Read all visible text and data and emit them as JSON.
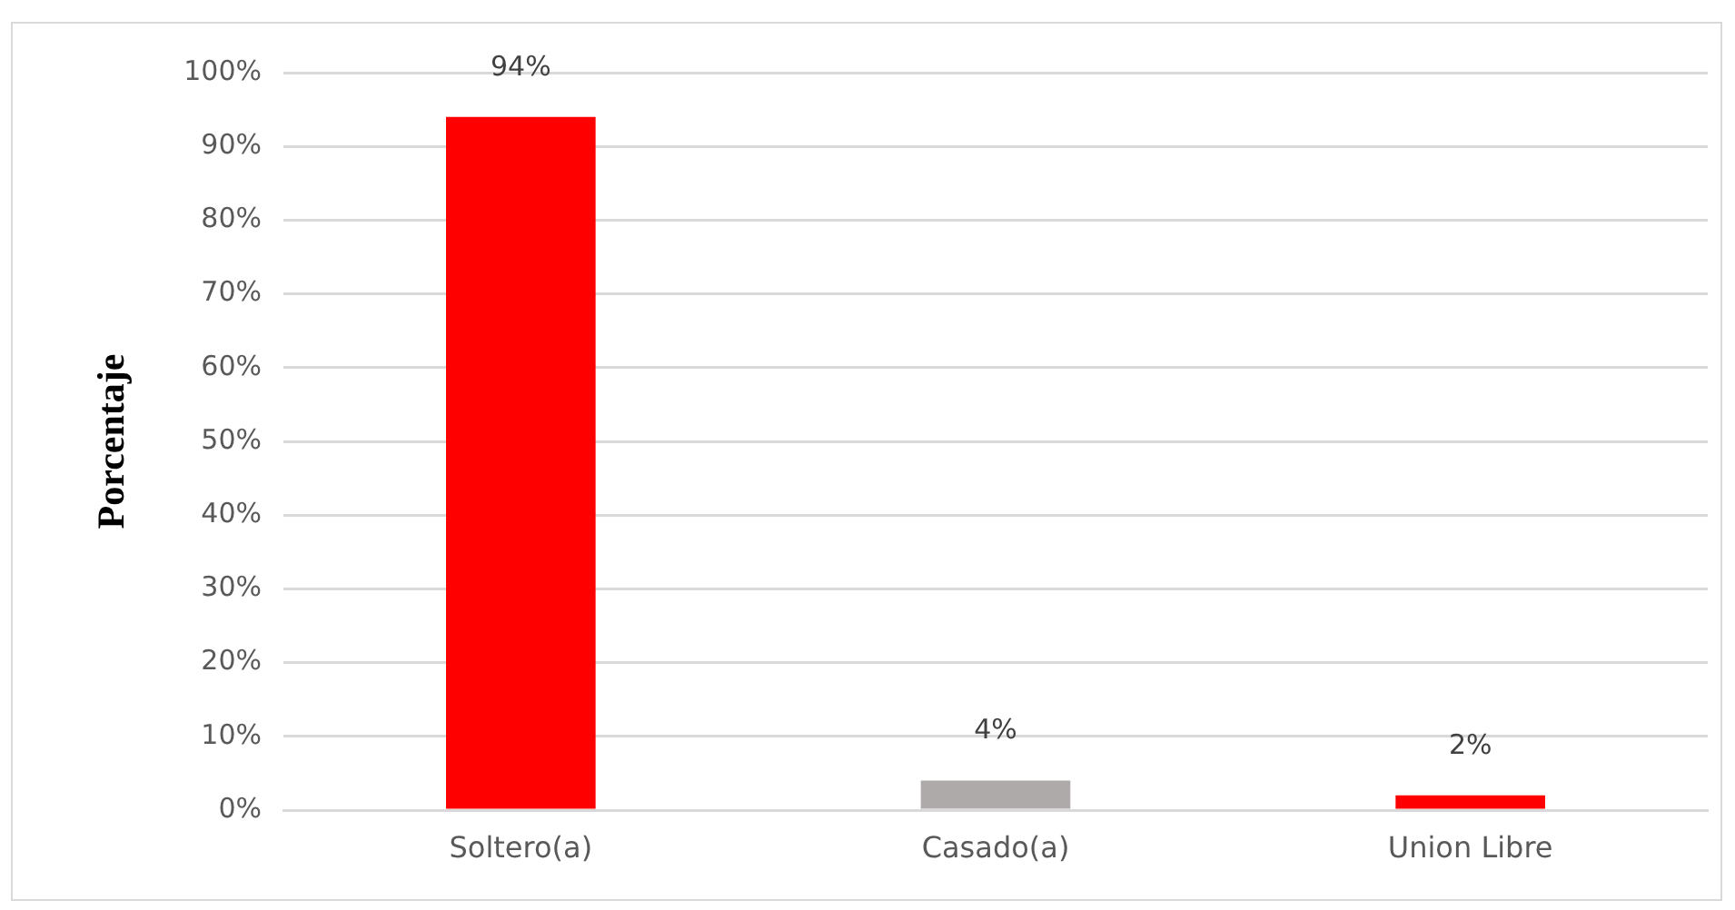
{
  "chart_data": {
    "type": "bar",
    "ylabel": "Porcentaje",
    "categories": [
      "Soltero(a)",
      "Casado(a)",
      "Union Libre"
    ],
    "values": [
      94,
      4,
      2
    ],
    "colors": [
      "#ff0000",
      "#aeaaaa",
      "#ff0000"
    ],
    "value_labels": [
      "94%",
      "4%",
      "2%"
    ],
    "ylim": [
      0,
      100
    ],
    "yticks": [
      {
        "value": 0,
        "label": "0%"
      },
      {
        "value": 10,
        "label": "10%"
      },
      {
        "value": 20,
        "label": "20%"
      },
      {
        "value": 30,
        "label": "30%"
      },
      {
        "value": 40,
        "label": "40%"
      },
      {
        "value": 50,
        "label": "50%"
      },
      {
        "value": 60,
        "label": "60%"
      },
      {
        "value": 70,
        "label": "70%"
      },
      {
        "value": 80,
        "label": "80%"
      },
      {
        "value": 90,
        "label": "90%"
      },
      {
        "value": 100,
        "label": "100%"
      }
    ],
    "grid": "y",
    "legend": false
  }
}
